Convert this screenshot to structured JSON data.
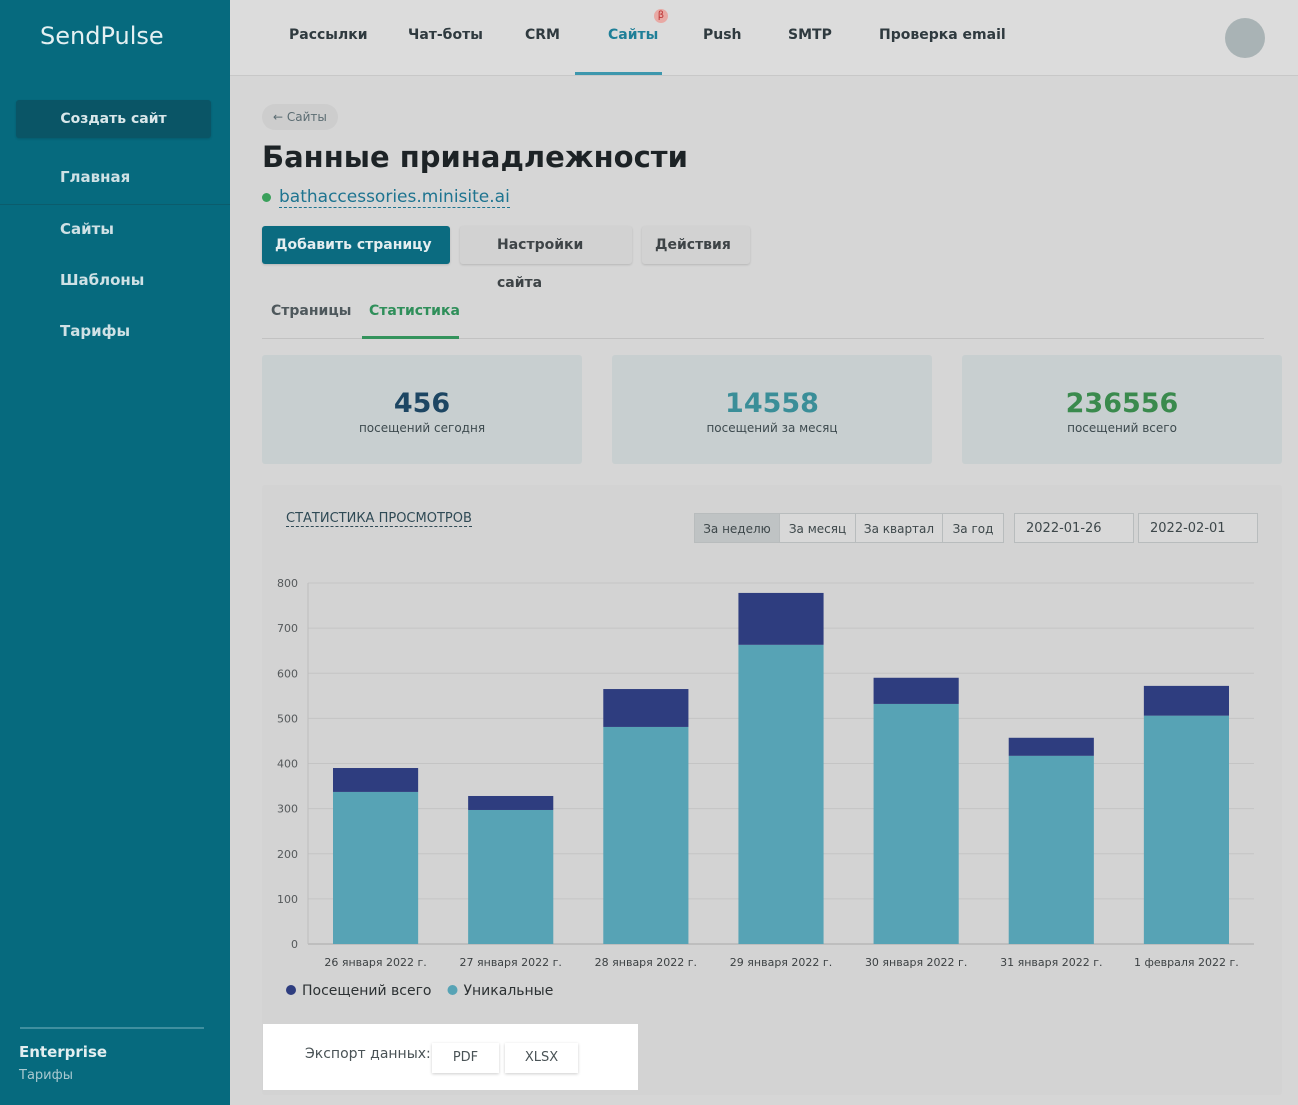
{
  "brand": "SendPulse",
  "nav": [
    "Рассылки",
    "Чат-боты",
    "CRM",
    "Сайты",
    "Push",
    "SMTP",
    "Проверка email"
  ],
  "nav_badge": "β",
  "sidebar": {
    "create_button": "Создать сайт",
    "items": [
      "Главная",
      "Сайты",
      "Шаблоны",
      "Тарифы"
    ],
    "plan": "Enterprise",
    "plan_link": "Тарифы"
  },
  "page": {
    "back": "← Сайты",
    "title": "Банные принадлежности",
    "domain": "bathaccessories.minisite.ai",
    "buttons": [
      "Добавить страницу",
      "Настройки сайта",
      "Действия"
    ],
    "tabs": [
      "Страницы",
      "Статистика"
    ]
  },
  "stats": [
    {
      "value": "456",
      "label": "посещений сегодня"
    },
    {
      "value": "14558",
      "label": "посещений за месяц"
    },
    {
      "value": "236556",
      "label": "посещений всего"
    }
  ],
  "chart_panel": {
    "selector": "СТАТИСТИКА ПРОСМОТРОВ",
    "periods": [
      "За неделю",
      "За месяц",
      "За квартал",
      "За год"
    ],
    "date_from": "2022-01-26",
    "date_to": "2022-02-01"
  },
  "chart_data": {
    "type": "bar",
    "stacked": true,
    "categories": [
      "26 января 2022 г.",
      "27 января 2022 г.",
      "28 января 2022 г.",
      "29 января 2022 г.",
      "30 января 2022 г.",
      "31 января 2022 г.",
      "1 февраля 2022 г."
    ],
    "series": [
      {
        "name": "Посещений всего",
        "color": "#2e3d7f",
        "values": [
          53,
          31,
          84,
          115,
          58,
          40,
          66
        ]
      },
      {
        "name": "Уникальные",
        "color": "#57a3b5",
        "values": [
          337,
          297,
          481,
          663,
          532,
          417,
          506
        ]
      }
    ],
    "ylim": [
      0,
      800
    ],
    "yticks": [
      0,
      100,
      200,
      300,
      400,
      500,
      600,
      700,
      800
    ],
    "grid": true
  },
  "export": {
    "label": "Экспорт данных:",
    "formats": [
      "PDF",
      "XLSX"
    ]
  }
}
